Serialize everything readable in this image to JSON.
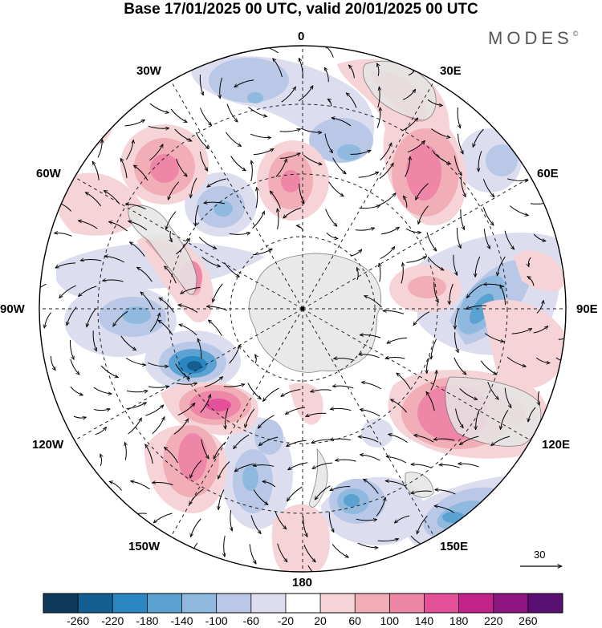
{
  "title": "Base 17/01/2025 00 UTC, valid 20/01/2025 00 UTC",
  "brand": "MODES",
  "brand_mark": "©",
  "longitude_labels": {
    "lon_0": "0",
    "lon_30e": "30E",
    "lon_60e": "60E",
    "lon_90e": "90E",
    "lon_120e": "120E",
    "lon_150e": "150E",
    "lon_180": "180",
    "lon_150w": "150W",
    "lon_120w": "120W",
    "lon_90w": "90W",
    "lon_60w": "60W",
    "lon_30w": "30W"
  },
  "reference_vector": "30",
  "colorbar": {
    "colors": [
      "#0d3a5c",
      "#135f92",
      "#2b86c2",
      "#5aa2d2",
      "#8fb9de",
      "#b8c8e6",
      "#dcdef0",
      "#ffffff",
      "#f6d3d6",
      "#f2aeb7",
      "#ee86a8",
      "#e4509a",
      "#c2248a",
      "#8e1582",
      "#5a0f72"
    ],
    "labels": [
      "-260",
      "-220",
      "-180",
      "-140",
      "-100",
      "-60",
      "-20",
      "20",
      "60",
      "100",
      "140",
      "180",
      "220",
      "260"
    ]
  }
}
